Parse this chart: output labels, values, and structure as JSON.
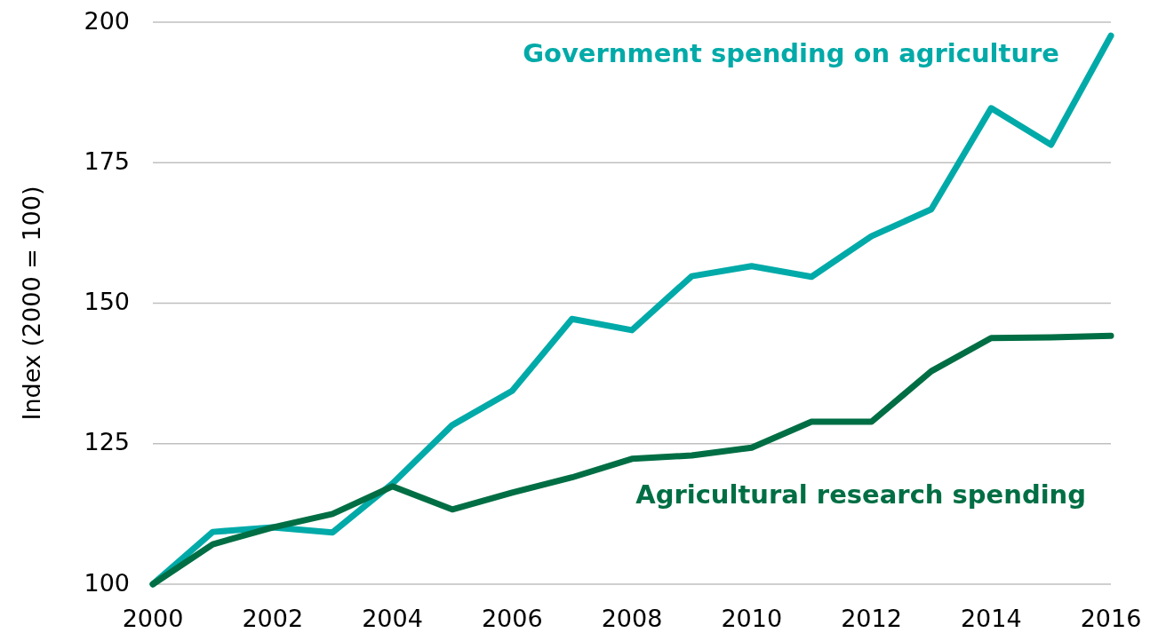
{
  "chart_data": {
    "type": "line",
    "ylabel": "Index (2000 = 100)",
    "x": [
      2000,
      2001,
      2002,
      2003,
      2004,
      2005,
      2006,
      2007,
      2008,
      2009,
      2010,
      2011,
      2012,
      2013,
      2014,
      2015,
      2016
    ],
    "series": [
      {
        "name": "Government spending on agriculture",
        "color": "#00aaa8",
        "values": [
          100,
          109.3,
          110.1,
          109.2,
          117.9,
          128.3,
          134.4,
          147.2,
          145.2,
          154.8,
          156.6,
          154.7,
          161.9,
          166.7,
          184.7,
          178.2,
          197.6
        ]
      },
      {
        "name": "Agricultural research spending",
        "color": "#006e44",
        "values": [
          100,
          107.1,
          110.1,
          112.5,
          117.4,
          113.3,
          116.3,
          119,
          122.3,
          122.9,
          124.3,
          128.9,
          128.9,
          137.9,
          143.8,
          143.9,
          144.2
        ]
      }
    ],
    "xlim": [
      2000,
      2016
    ],
    "xticks": [
      2000,
      2002,
      2004,
      2006,
      2008,
      2010,
      2012,
      2014,
      2016
    ],
    "ylim": [
      100,
      200
    ],
    "yticks": [
      100,
      125,
      150,
      175,
      200
    ],
    "grid": "y",
    "marker": "none",
    "line_style": "solid"
  }
}
